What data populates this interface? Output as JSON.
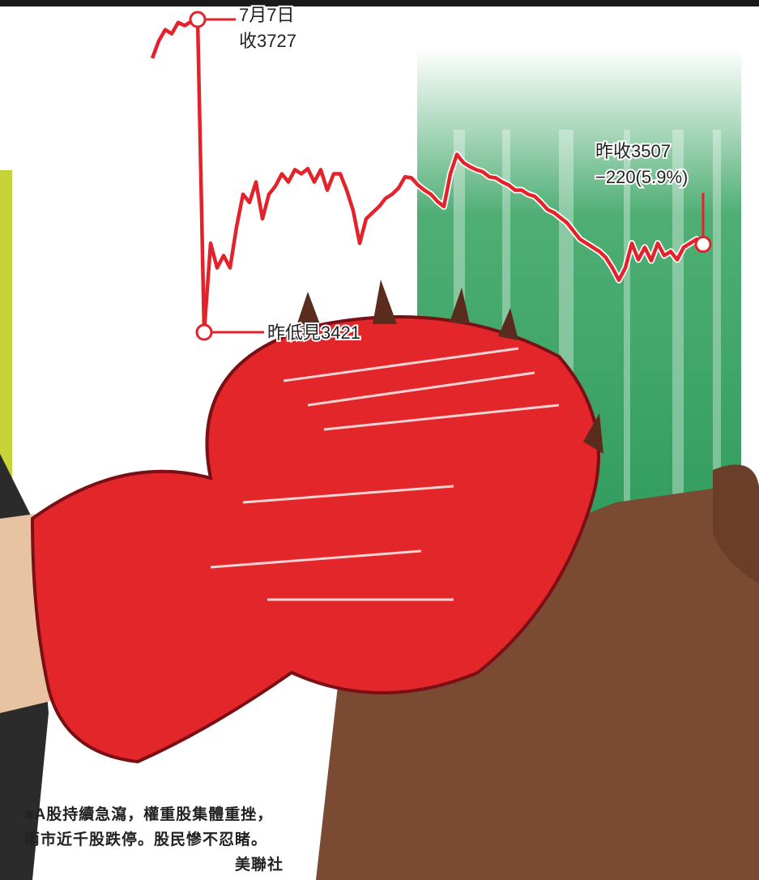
{
  "chart_data": {
    "type": "line",
    "color": "#e3232b",
    "values": [
      3689,
      3706,
      3717,
      3713,
      3724,
      3721,
      3725,
      3727,
      3421,
      3508,
      3484,
      3496,
      3484,
      3524,
      3556,
      3548,
      3568,
      3532,
      3556,
      3564,
      3576,
      3568,
      3580,
      3576,
      3581,
      3568,
      3580,
      3560,
      3576,
      3576,
      3560,
      3540,
      3508,
      3532,
      3538,
      3544,
      3552,
      3556,
      3562,
      3573,
      3572,
      3565,
      3560,
      3556,
      3549,
      3544,
      3576,
      3595,
      3587,
      3583,
      3580,
      3578,
      3573,
      3572,
      3568,
      3565,
      3560,
      3560,
      3556,
      3554,
      3548,
      3541,
      3538,
      3533,
      3528,
      3520,
      3512,
      3508,
      3504,
      3500,
      3494,
      3484,
      3472,
      3484,
      3508,
      3492,
      3504,
      3491,
      3508,
      3496,
      3500,
      3492,
      3504,
      3508,
      3512,
      3507
    ],
    "ylim": [
      3400,
      3750
    ],
    "annotations": [
      [
        "7月7日",
        "收3727"
      ],
      [
        "昨收3507",
        "−220(5.9%)"
      ],
      [
        "昨低見3421"
      ]
    ],
    "caption": "■A股持續急瀉，權重股集體重挫，兩市近千股跌停。股民慘不忍睹。",
    "credit": "美聯社"
  }
}
